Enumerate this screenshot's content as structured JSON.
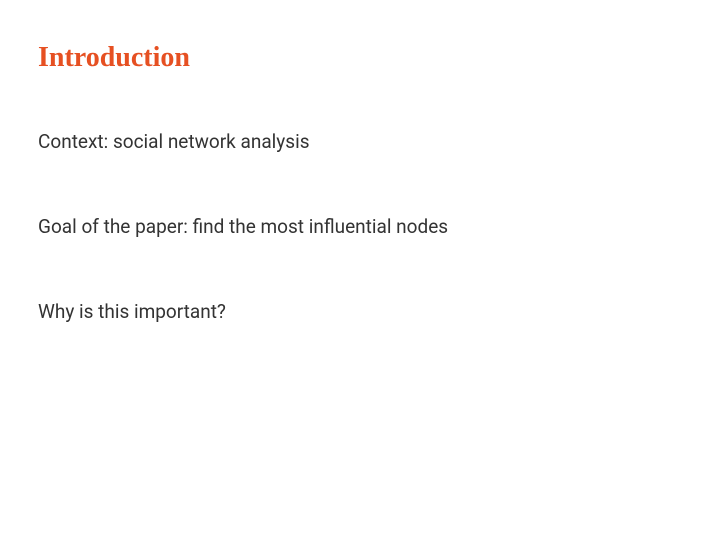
{
  "slide": {
    "title": {
      "text": "Introduction",
      "color": "#e65022",
      "fontsize": 28,
      "font_family_serif": true
    },
    "bullets": [
      {
        "text": "Context: social network analysis"
      },
      {
        "text": "Goal of the paper: find the most influential nodes"
      },
      {
        "text": "Why is this important?"
      }
    ],
    "body_color": "#333333",
    "body_fontsize": 19,
    "background_color": "#ffffff"
  }
}
